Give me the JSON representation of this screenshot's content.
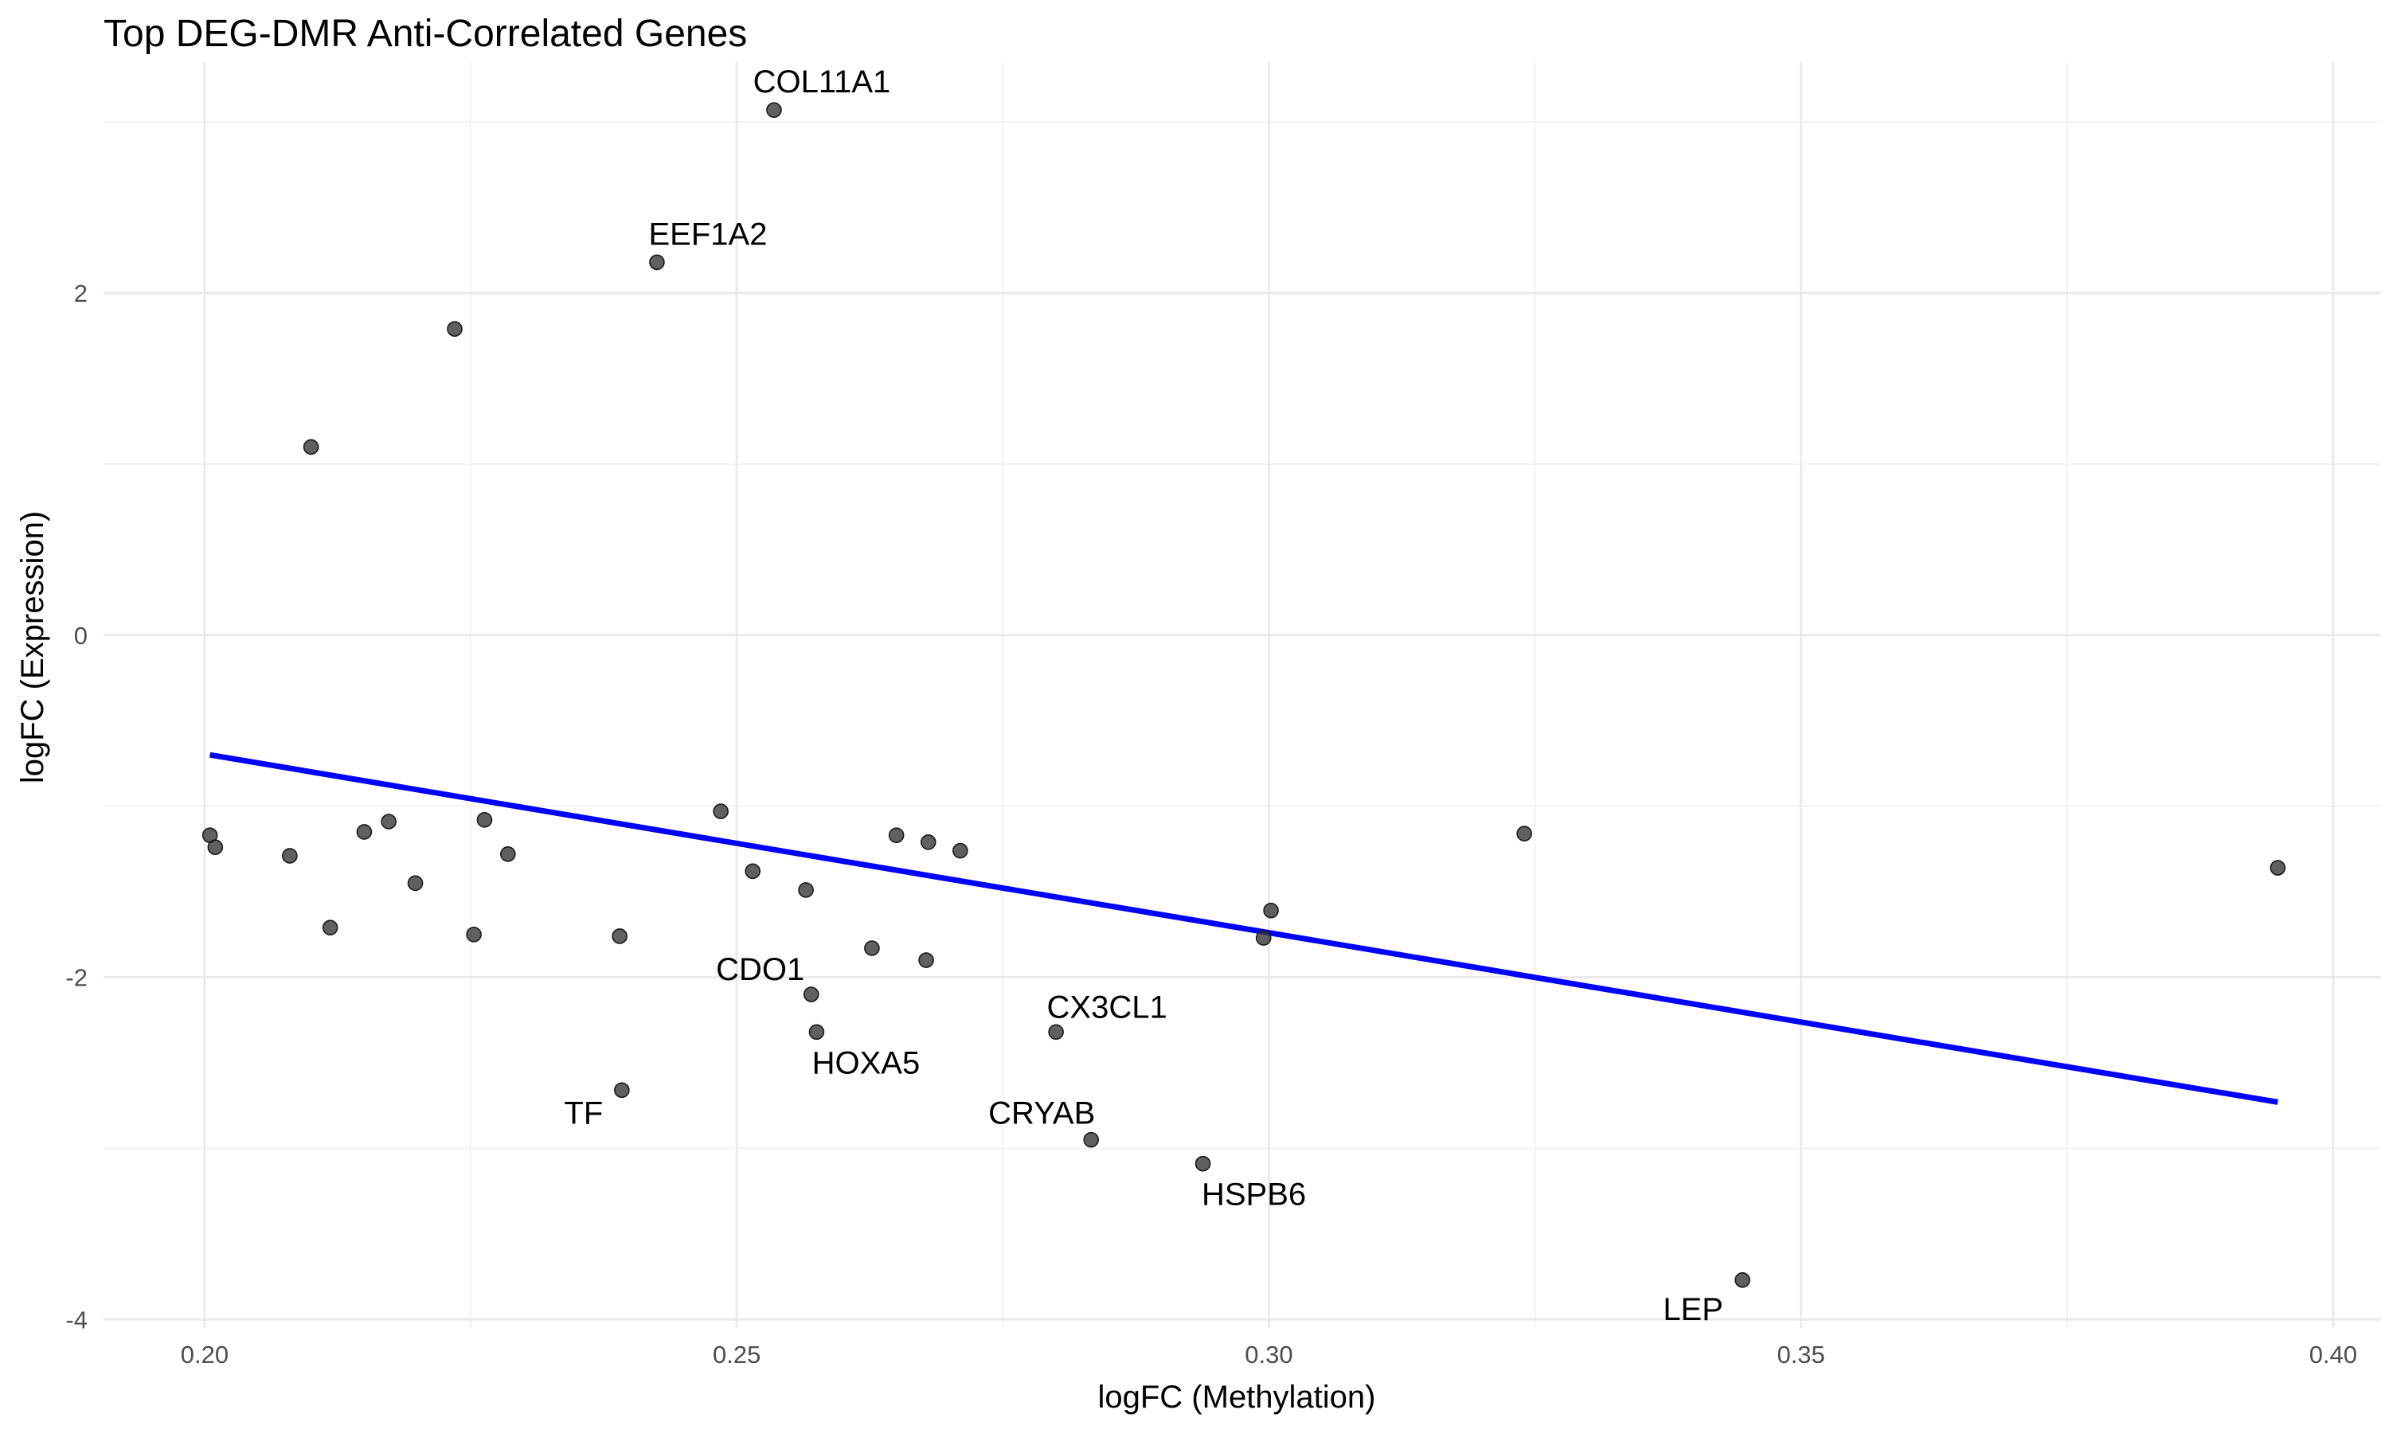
{
  "chart_data": {
    "type": "scatter",
    "title": "Top DEG-DMR Anti-Correlated Genes",
    "xlabel": "logFC (Methylation)",
    "ylabel": "logFC (Expression)",
    "xlim": [
      0.1905,
      0.4045
    ],
    "ylim": [
      -4.05,
      3.35
    ],
    "x_ticks": [
      0.2,
      0.25,
      0.3,
      0.35,
      0.4
    ],
    "x_tick_labels": [
      "0.20",
      "0.25",
      "0.30",
      "0.35",
      "0.40"
    ],
    "y_ticks": [
      -4,
      -2,
      0,
      2
    ],
    "y_tick_labels": [
      "-4",
      "-2",
      "0",
      "2"
    ],
    "grid": true,
    "point_color": "#333333",
    "fit_line_color": "#0000ff",
    "points": [
      {
        "x": 0.2535,
        "y": 3.07,
        "label": "COL11A1"
      },
      {
        "x": 0.2425,
        "y": 2.18,
        "label": "EEF1A2"
      },
      {
        "x": 0.2235,
        "y": 1.79,
        "label": ""
      },
      {
        "x": 0.21,
        "y": 1.1,
        "label": ""
      },
      {
        "x": 0.2005,
        "y": -1.17,
        "label": ""
      },
      {
        "x": 0.201,
        "y": -1.24,
        "label": ""
      },
      {
        "x": 0.208,
        "y": -1.29,
        "label": ""
      },
      {
        "x": 0.2118,
        "y": -1.71,
        "label": ""
      },
      {
        "x": 0.215,
        "y": -1.15,
        "label": ""
      },
      {
        "x": 0.2173,
        "y": -1.09,
        "label": ""
      },
      {
        "x": 0.2198,
        "y": -1.45,
        "label": ""
      },
      {
        "x": 0.2253,
        "y": -1.75,
        "label": ""
      },
      {
        "x": 0.2263,
        "y": -1.08,
        "label": ""
      },
      {
        "x": 0.2285,
        "y": -1.28,
        "label": ""
      },
      {
        "x": 0.239,
        "y": -1.76,
        "label": ""
      },
      {
        "x": 0.2392,
        "y": -2.66,
        "label": "TF"
      },
      {
        "x": 0.2485,
        "y": -1.03,
        "label": ""
      },
      {
        "x": 0.2515,
        "y": -1.38,
        "label": ""
      },
      {
        "x": 0.2565,
        "y": -1.49,
        "label": ""
      },
      {
        "x": 0.257,
        "y": -2.1,
        "label": "CDO1"
      },
      {
        "x": 0.2575,
        "y": -2.32,
        "label": "HOXA5"
      },
      {
        "x": 0.2627,
        "y": -1.83,
        "label": ""
      },
      {
        "x": 0.265,
        "y": -1.17,
        "label": ""
      },
      {
        "x": 0.268,
        "y": -1.21,
        "label": ""
      },
      {
        "x": 0.2678,
        "y": -1.9,
        "label": ""
      },
      {
        "x": 0.271,
        "y": -1.26,
        "label": ""
      },
      {
        "x": 0.28,
        "y": -2.32,
        "label": "CX3CL1"
      },
      {
        "x": 0.2833,
        "y": -2.95,
        "label": "CRYAB"
      },
      {
        "x": 0.2938,
        "y": -3.09,
        "label": "HSPB6"
      },
      {
        "x": 0.2995,
        "y": -1.77,
        "label": ""
      },
      {
        "x": 0.3002,
        "y": -1.61,
        "label": ""
      },
      {
        "x": 0.324,
        "y": -1.16,
        "label": ""
      },
      {
        "x": 0.3445,
        "y": -3.77,
        "label": "LEP"
      },
      {
        "x": 0.3948,
        "y": -1.36,
        "label": ""
      }
    ],
    "fit_line": {
      "x": [
        0.2005,
        0.3948
      ],
      "y": [
        -0.7,
        -2.73
      ]
    }
  }
}
